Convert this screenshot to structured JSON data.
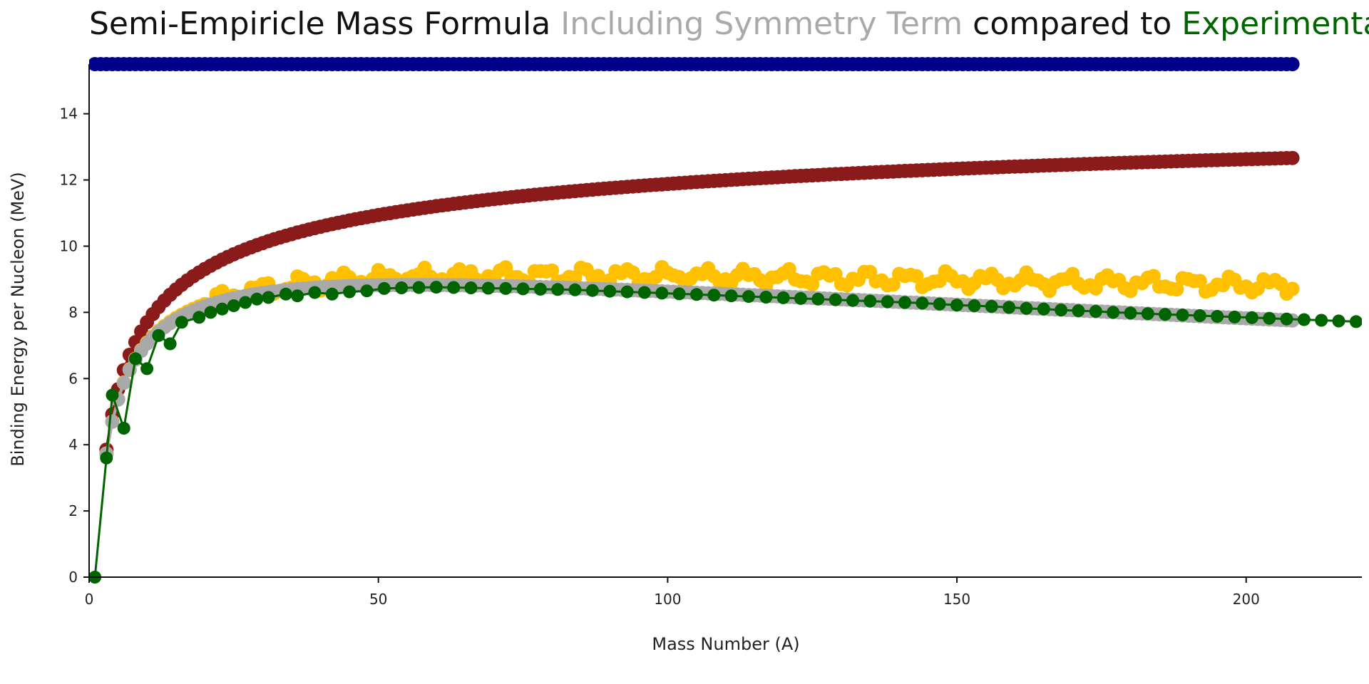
{
  "chart_data": {
    "type": "line",
    "title_parts": [
      {
        "text": "Semi-Empiricle Mass Formula ",
        "color": "#111111"
      },
      {
        "text": "Including Symmetry Term",
        "color": "#a9a9a9"
      },
      {
        "text": " compared to ",
        "color": "#111111"
      },
      {
        "text": "Experimental",
        "color": "#006400"
      }
    ],
    "xlabel": "Mass Number (A)",
    "ylabel": "Binding Energy per Nucleon (MeV)",
    "xlim": [
      0,
      220
    ],
    "ylim": [
      0,
      15.5
    ],
    "x_ticks": [
      0,
      50,
      100,
      150,
      200
    ],
    "y_ticks": [
      0,
      2,
      4,
      6,
      8,
      10,
      12,
      14
    ],
    "grid": false,
    "legend": "none",
    "series": [
      {
        "color": "#00008b",
        "style": "dense",
        "x_range": [
          1,
          208
        ],
        "curve": "flat",
        "params": {
          "value": 15.5
        }
      },
      {
        "color": "#8b1a1a",
        "style": "dense",
        "x_range": [
          3,
          208
        ],
        "curve": "vol_surf",
        "params": {
          "a": 15.5,
          "b": 16.8
        }
      },
      {
        "color": "#ffc000",
        "style": "dense",
        "x_range": [
          3,
          208
        ],
        "curve": "coulomb",
        "params": {
          "a": 15.5,
          "b": 16.8,
          "c": 0.72
        }
      },
      {
        "color": "#a9a9a9",
        "style": "dense",
        "x_range": [
          3,
          208
        ],
        "curve": "symmetry",
        "params": {
          "a": 15.5,
          "b": 16.8,
          "c": 0.72,
          "d": 23.0
        }
      },
      {
        "color": "#006400",
        "style": "sparse",
        "curve": "points",
        "x": [
          1,
          3,
          4,
          6,
          8,
          10,
          12,
          14,
          16,
          19,
          21,
          23,
          25,
          27,
          29,
          31,
          34,
          36,
          39,
          42,
          45,
          48,
          51,
          54,
          57,
          60,
          63,
          66,
          69,
          72,
          75,
          78,
          81,
          84,
          87,
          90,
          93,
          96,
          99,
          102,
          105,
          108,
          111,
          114,
          117,
          120,
          123,
          126,
          129,
          132,
          135,
          138,
          141,
          144,
          147,
          150,
          153,
          156,
          159,
          162,
          165,
          168,
          171,
          174,
          177,
          180,
          183,
          186,
          189,
          192,
          195,
          198,
          201,
          204,
          207,
          210,
          213,
          216,
          219
        ],
        "y": [
          0.0,
          3.6,
          5.5,
          4.5,
          6.6,
          6.3,
          7.3,
          7.05,
          7.7,
          7.85,
          8.0,
          8.1,
          8.2,
          8.3,
          8.4,
          8.45,
          8.55,
          8.5,
          8.6,
          8.55,
          8.62,
          8.65,
          8.72,
          8.74,
          8.75,
          8.76,
          8.75,
          8.74,
          8.73,
          8.72,
          8.71,
          8.7,
          8.69,
          8.68,
          8.66,
          8.64,
          8.62,
          8.6,
          8.58,
          8.56,
          8.54,
          8.52,
          8.5,
          8.48,
          8.46,
          8.44,
          8.42,
          8.4,
          8.38,
          8.36,
          8.34,
          8.32,
          8.3,
          8.28,
          8.25,
          8.22,
          8.2,
          8.18,
          8.15,
          8.12,
          8.1,
          8.07,
          8.05,
          8.03,
          8.0,
          7.98,
          7.96,
          7.94,
          7.92,
          7.9,
          7.88,
          7.86,
          7.84,
          7.82,
          7.8,
          7.78,
          7.76,
          7.74,
          7.72
        ]
      }
    ]
  }
}
